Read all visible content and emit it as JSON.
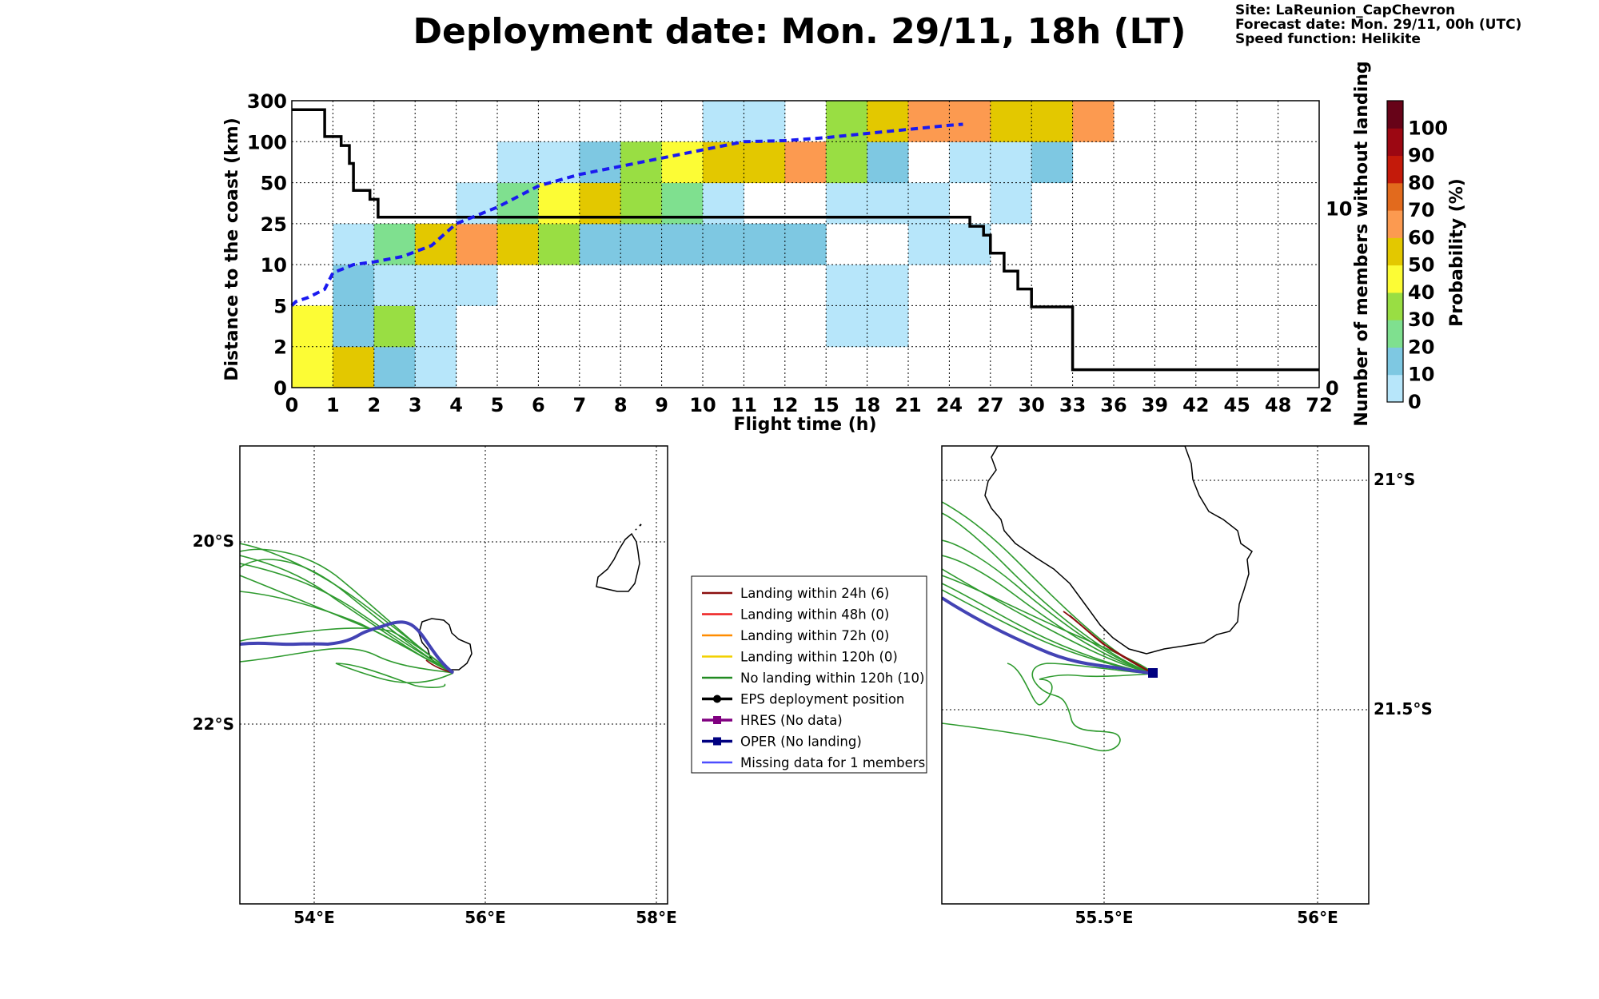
{
  "title": "Deployment date: Mon. 29/11, 18h (LT)",
  "info": {
    "site": "Site: LaReunion_CapChevron",
    "forecast": "Forecast date: Mon. 29/11, 00h (UTC)",
    "speed": "Speed function: Helikite"
  },
  "chart_data": [
    {
      "type": "heatmap",
      "xlabel": "Flight time (h)",
      "ylabel": "Distance to the coast (km)",
      "ylabel_right": "Number of members without landing",
      "x_ticks": [
        "0",
        "1",
        "2",
        "3",
        "4",
        "5",
        "6",
        "7",
        "8",
        "9",
        "10",
        "11",
        "12",
        "15",
        "18",
        "21",
        "24",
        "27",
        "30",
        "33",
        "36",
        "39",
        "42",
        "45",
        "48",
        "72"
      ],
      "y_ticks": [
        "0",
        "2",
        "5",
        "10",
        "25",
        "50",
        "100",
        "300"
      ],
      "right_ticks": [
        {
          "label": "0",
          "value": 0
        },
        {
          "label": "10",
          "value": 10
        }
      ],
      "right_ylim": [
        0,
        16
      ],
      "grid": true,
      "colorbar": {
        "label": "Probability (%)",
        "ticks": [
          "0",
          "10",
          "20",
          "30",
          "40",
          "50",
          "60",
          "70",
          "80",
          "90",
          "100"
        ],
        "colors": [
          "#b7e6fa",
          "#7ec8e2",
          "#7fe08f",
          "#99de43",
          "#fcfc35",
          "#e3c800",
          "#fc9a50",
          "#e26a1d",
          "#c41a0a",
          "#9c0712",
          "#670318"
        ]
      },
      "cells": [
        {
          "x": 0,
          "y": 0,
          "p": 45
        },
        {
          "x": 1,
          "y": 0,
          "p": 55
        },
        {
          "x": 2,
          "y": 0,
          "p": 12
        },
        {
          "x": 3,
          "y": 0,
          "p": 5
        },
        {
          "x": 0,
          "y": 1,
          "p": 45
        },
        {
          "x": 1,
          "y": 1,
          "p": 12
        },
        {
          "x": 2,
          "y": 1,
          "p": 35
        },
        {
          "x": 3,
          "y": 1,
          "p": 5
        },
        {
          "x": 1,
          "y": 2,
          "p": 12
        },
        {
          "x": 2,
          "y": 2,
          "p": 5
        },
        {
          "x": 3,
          "y": 2,
          "p": 5
        },
        {
          "x": 4,
          "y": 2,
          "p": 5
        },
        {
          "x": 1,
          "y": 3,
          "p": 5
        },
        {
          "x": 2,
          "y": 3,
          "p": 25
        },
        {
          "x": 3,
          "y": 3,
          "p": 55
        },
        {
          "x": 4,
          "y": 3,
          "p": 65
        },
        {
          "x": 5,
          "y": 3,
          "p": 55
        },
        {
          "x": 6,
          "y": 3,
          "p": 35
        },
        {
          "x": 7,
          "y": 3,
          "p": 12
        },
        {
          "x": 8,
          "y": 3,
          "p": 12
        },
        {
          "x": 9,
          "y": 3,
          "p": 12
        },
        {
          "x": 10,
          "y": 3,
          "p": 12
        },
        {
          "x": 11,
          "y": 3,
          "p": 12
        },
        {
          "x": 12,
          "y": 3,
          "p": 12
        },
        {
          "x": 15,
          "y": 3,
          "p": 5
        },
        {
          "x": 16,
          "y": 3,
          "p": 5
        },
        {
          "x": 4,
          "y": 4,
          "p": 5
        },
        {
          "x": 5,
          "y": 4,
          "p": 25
        },
        {
          "x": 6,
          "y": 4,
          "p": 45
        },
        {
          "x": 7,
          "y": 4,
          "p": 55
        },
        {
          "x": 8,
          "y": 4,
          "p": 35
        },
        {
          "x": 9,
          "y": 4,
          "p": 25
        },
        {
          "x": 10,
          "y": 4,
          "p": 5
        },
        {
          "x": 13,
          "y": 4,
          "p": 5
        },
        {
          "x": 14,
          "y": 4,
          "p": 5
        },
        {
          "x": 15,
          "y": 4,
          "p": 5
        },
        {
          "x": 17,
          "y": 4,
          "p": 5
        },
        {
          "x": 5,
          "y": 5,
          "p": 5
        },
        {
          "x": 6,
          "y": 5,
          "p": 5
        },
        {
          "x": 7,
          "y": 5,
          "p": 12
        },
        {
          "x": 8,
          "y": 5,
          "p": 35
        },
        {
          "x": 9,
          "y": 5,
          "p": 45
        },
        {
          "x": 10,
          "y": 5,
          "p": 55
        },
        {
          "x": 11,
          "y": 5,
          "p": 55
        },
        {
          "x": 12,
          "y": 5,
          "p": 65
        },
        {
          "x": 13,
          "y": 5,
          "p": 35
        },
        {
          "x": 14,
          "y": 5,
          "p": 12
        },
        {
          "x": 16,
          "y": 5,
          "p": 5
        },
        {
          "x": 17,
          "y": 5,
          "p": 5
        },
        {
          "x": 18,
          "y": 5,
          "p": 12
        },
        {
          "x": 10,
          "y": 6,
          "p": 5
        },
        {
          "x": 11,
          "y": 6,
          "p": 5
        },
        {
          "x": 13,
          "y": 6,
          "p": 35
        },
        {
          "x": 14,
          "y": 6,
          "p": 55
        },
        {
          "x": 15,
          "y": 6,
          "p": 65
        },
        {
          "x": 16,
          "y": 6,
          "p": 65
        },
        {
          "x": 17,
          "y": 6,
          "p": 55
        },
        {
          "x": 18,
          "y": 6,
          "p": 55
        },
        {
          "x": 19,
          "y": 6,
          "p": 65
        },
        {
          "x": 13,
          "y": 1,
          "p": 5
        },
        {
          "x": 14,
          "y": 1,
          "p": 5
        },
        {
          "x": 13,
          "y": 2,
          "p": 5
        },
        {
          "x": 14,
          "y": 2,
          "p": 5
        }
      ],
      "series": [
        {
          "name": "Number of members without landing",
          "color": "#000000",
          "style": "solid",
          "x": [
            0,
            0.8,
            0.8,
            1.2,
            1.2,
            1.4,
            1.4,
            1.5,
            1.5,
            1.9,
            1.9,
            2.1,
            2.1,
            3,
            6,
            9,
            12,
            15,
            18,
            21,
            24,
            25.5,
            25.5,
            26.5,
            26.5,
            27,
            27,
            28,
            28,
            29,
            29,
            30,
            30,
            32,
            32,
            33,
            33,
            34,
            34,
            72
          ],
          "y": [
            15.5,
            15.5,
            14.0,
            14.0,
            13.5,
            13.5,
            12.5,
            12.5,
            11.0,
            11.0,
            10.5,
            10.5,
            9.5,
            9.5,
            9.5,
            9.5,
            9.5,
            9.5,
            9.5,
            9.5,
            9.5,
            9.5,
            9.0,
            9.0,
            8.5,
            8.5,
            7.5,
            7.5,
            6.5,
            6.5,
            5.5,
            5.5,
            4.5,
            4.5,
            4.5,
            4.5,
            1.0,
            1.0,
            1.0,
            1.0
          ]
        },
        {
          "name": "Mean distance to the coast",
          "color": "#1a1af0",
          "style": "dashed",
          "x": [
            0,
            0.1,
            0.4,
            0.8,
            1.0,
            1.5,
            2.0,
            2.7,
            3.4,
            4.0,
            5.0,
            6.0,
            7.0,
            8.0,
            9.0,
            10.0,
            11.0,
            12.0,
            15.0,
            18.0,
            21.0,
            24.0,
            25.0
          ],
          "y": [
            5,
            5.5,
            6,
            7,
            9,
            10,
            11,
            13,
            17,
            25,
            35,
            48,
            60,
            70,
            80,
            90,
            100,
            105,
            120,
            140,
            160,
            180,
            185
          ]
        }
      ]
    },
    {
      "type": "map",
      "x_ticks": [
        "54°E",
        "56°E",
        "58°E"
      ],
      "y_ticks": [
        "20°S",
        "22°S"
      ]
    },
    {
      "type": "map",
      "x_ticks": [
        "55.5°E",
        "56°E"
      ],
      "y_ticks": [
        "21°S",
        "21.5°S"
      ]
    }
  ],
  "legend": [
    {
      "label": "Landing within 24h (6)",
      "color": "#8b0f0f",
      "marker": "none"
    },
    {
      "label": "Landing within 48h (0)",
      "color": "#ee2020",
      "marker": "none"
    },
    {
      "label": "Landing within 72h (0)",
      "color": "#ff8c00",
      "marker": "none"
    },
    {
      "label": "Landing within 120h (0)",
      "color": "#f2d000",
      "marker": "none"
    },
    {
      "label": "No landing within 120h (10)",
      "color": "#228b22",
      "marker": "none"
    },
    {
      "label": "EPS deployment position",
      "color": "#000000",
      "marker": "circle"
    },
    {
      "label": "HRES (No data)",
      "color": "#800080",
      "marker": "square"
    },
    {
      "label": "OPER (No landing)",
      "color": "#000080",
      "marker": "square"
    },
    {
      "label": "Missing data for 1 members",
      "color": "#4d4dff",
      "marker": "none"
    }
  ]
}
